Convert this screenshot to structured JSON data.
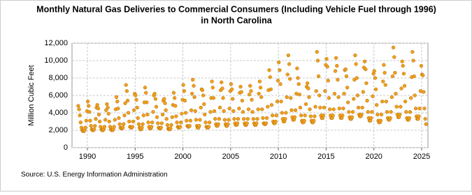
{
  "chart_data": {
    "type": "scatter",
    "title": [
      "Monthly Natural Gas Deliveries to Commercial Consumers (Including Vehicle Fuel through 1996)",
      "in North Carolina"
    ],
    "y_label": "Million Cubic Feet",
    "source": "Source: U.S. Energy Information Administration",
    "color": "#f0a01e",
    "grid": true,
    "xlim": [
      1988.39,
      2025.66
    ],
    "xticks": [
      1990,
      1995,
      2000,
      2005,
      2010,
      2015,
      2020,
      2025
    ],
    "ylim": [
      0,
      12000
    ],
    "yticks": [
      0,
      {
        "value": 2000,
        "label": "2,000"
      },
      {
        "value": 4000,
        "label": "4,000"
      },
      {
        "value": 6000,
        "label": "6,000"
      },
      {
        "value": 8000,
        "label": "8,000"
      },
      {
        "value": 10000,
        "label": "10,000"
      },
      {
        "value": 12000,
        "label": "12,000"
      }
    ],
    "x": [
      1989.04,
      1989.13,
      1989.21,
      1989.29,
      1989.38,
      1989.46,
      1989.54,
      1989.63,
      1989.71,
      1989.79,
      1989.88,
      1989.96,
      1990.04,
      1990.13,
      1990.21,
      1990.29,
      1990.38,
      1990.46,
      1990.54,
      1990.63,
      1990.71,
      1990.79,
      1990.88,
      1990.96,
      1991.04,
      1991.13,
      1991.21,
      1991.29,
      1991.38,
      1991.46,
      1991.54,
      1991.63,
      1991.71,
      1991.79,
      1991.88,
      1991.96,
      1992.04,
      1992.13,
      1992.21,
      1992.29,
      1992.38,
      1992.46,
      1992.54,
      1992.63,
      1992.71,
      1992.79,
      1992.88,
      1992.96,
      1993.04,
      1993.13,
      1993.21,
      1993.29,
      1993.38,
      1993.46,
      1993.54,
      1993.63,
      1993.71,
      1993.79,
      1993.88,
      1993.96,
      1994.04,
      1994.13,
      1994.21,
      1994.29,
      1994.38,
      1994.46,
      1994.54,
      1994.63,
      1994.71,
      1994.79,
      1994.88,
      1994.96,
      1995.04,
      1995.13,
      1995.21,
      1995.29,
      1995.38,
      1995.46,
      1995.54,
      1995.63,
      1995.71,
      1995.79,
      1995.88,
      1995.96,
      1996.04,
      1996.13,
      1996.21,
      1996.29,
      1996.38,
      1996.46,
      1996.54,
      1996.63,
      1996.71,
      1996.79,
      1996.88,
      1996.96,
      1997.04,
      1997.13,
      1997.21,
      1997.29,
      1997.38,
      1997.46,
      1997.54,
      1997.63,
      1997.71,
      1997.79,
      1997.88,
      1997.96,
      1998.04,
      1998.13,
      1998.21,
      1998.29,
      1998.38,
      1998.46,
      1998.54,
      1998.63,
      1998.71,
      1998.79,
      1998.88,
      1998.96,
      1999.04,
      1999.13,
      1999.21,
      1999.29,
      1999.38,
      1999.46,
      1999.54,
      1999.63,
      1999.71,
      1999.79,
      1999.88,
      1999.96,
      2000.04,
      2000.13,
      2000.21,
      2000.29,
      2000.38,
      2000.46,
      2000.54,
      2000.63,
      2000.71,
      2000.79,
      2000.88,
      2000.96,
      2001.04,
      2001.13,
      2001.21,
      2001.29,
      2001.38,
      2001.46,
      2001.54,
      2001.63,
      2001.71,
      2001.79,
      2001.88,
      2001.96,
      2002.04,
      2002.13,
      2002.21,
      2002.29,
      2002.38,
      2002.46,
      2002.54,
      2002.63,
      2002.71,
      2002.79,
      2002.88,
      2002.96,
      2003.04,
      2003.13,
      2003.21,
      2003.29,
      2003.38,
      2003.46,
      2003.54,
      2003.63,
      2003.71,
      2003.79,
      2003.88,
      2003.96,
      2004.04,
      2004.13,
      2004.21,
      2004.29,
      2004.38,
      2004.46,
      2004.54,
      2004.63,
      2004.71,
      2004.79,
      2004.88,
      2004.96,
      2005.04,
      2005.13,
      2005.21,
      2005.29,
      2005.38,
      2005.46,
      2005.54,
      2005.63,
      2005.71,
      2005.79,
      2005.88,
      2005.96,
      2006.04,
      2006.13,
      2006.21,
      2006.29,
      2006.38,
      2006.46,
      2006.54,
      2006.63,
      2006.71,
      2006.79,
      2006.88,
      2006.96,
      2007.04,
      2007.13,
      2007.21,
      2007.29,
      2007.38,
      2007.46,
      2007.54,
      2007.63,
      2007.71,
      2007.79,
      2007.88,
      2007.96,
      2008.04,
      2008.13,
      2008.21,
      2008.29,
      2008.38,
      2008.46,
      2008.54,
      2008.63,
      2008.71,
      2008.79,
      2008.88,
      2008.96,
      2009.04,
      2009.13,
      2009.21,
      2009.29,
      2009.38,
      2009.46,
      2009.54,
      2009.63,
      2009.71,
      2009.79,
      2009.88,
      2009.96,
      2010.04,
      2010.13,
      2010.21,
      2010.29,
      2010.38,
      2010.46,
      2010.54,
      2010.63,
      2010.71,
      2010.79,
      2010.88,
      2010.96,
      2011.04,
      2011.13,
      2011.21,
      2011.29,
      2011.38,
      2011.46,
      2011.54,
      2011.63,
      2011.71,
      2011.79,
      2011.88,
      2011.96,
      2012.04,
      2012.13,
      2012.21,
      2012.29,
      2012.38,
      2012.46,
      2012.54,
      2012.63,
      2012.71,
      2012.79,
      2012.88,
      2012.96,
      2013.04,
      2013.13,
      2013.21,
      2013.29,
      2013.38,
      2013.46,
      2013.54,
      2013.63,
      2013.71,
      2013.79,
      2013.88,
      2013.96,
      2014.04,
      2014.13,
      2014.21,
      2014.29,
      2014.38,
      2014.46,
      2014.54,
      2014.63,
      2014.71,
      2014.79,
      2014.88,
      2014.96,
      2015.04,
      2015.13,
      2015.21,
      2015.29,
      2015.38,
      2015.46,
      2015.54,
      2015.63,
      2015.71,
      2015.79,
      2015.88,
      2015.96,
      2016.04,
      2016.13,
      2016.21,
      2016.29,
      2016.38,
      2016.46,
      2016.54,
      2016.63,
      2016.71,
      2016.79,
      2016.88,
      2016.96,
      2017.04,
      2017.13,
      2017.21,
      2017.29,
      2017.38,
      2017.46,
      2017.54,
      2017.63,
      2017.71,
      2017.79,
      2017.88,
      2017.96,
      2018.04,
      2018.13,
      2018.21,
      2018.29,
      2018.38,
      2018.46,
      2018.54,
      2018.63,
      2018.71,
      2018.79,
      2018.88,
      2018.96,
      2019.04,
      2019.13,
      2019.21,
      2019.29,
      2019.38,
      2019.46,
      2019.54,
      2019.63,
      2019.71,
      2019.79,
      2019.88,
      2019.96,
      2020.04,
      2020.13,
      2020.21,
      2020.29,
      2020.38,
      2020.46,
      2020.54,
      2020.63,
      2020.71,
      2020.79,
      2020.88,
      2020.96,
      2021.04,
      2021.13,
      2021.21,
      2021.29,
      2021.38,
      2021.46,
      2021.54,
      2021.63,
      2021.71,
      2021.79,
      2021.88,
      2021.96,
      2022.04,
      2022.13,
      2022.21,
      2022.29,
      2022.38,
      2022.46,
      2022.54,
      2022.63,
      2022.71,
      2022.79,
      2022.88,
      2022.96,
      2023.04,
      2023.13,
      2023.21,
      2023.29,
      2023.38,
      2023.46,
      2023.54,
      2023.63,
      2023.71,
      2023.79,
      2023.88,
      2023.96,
      2024.04,
      2024.13,
      2024.21,
      2024.29,
      2024.38,
      2024.46,
      2024.54,
      2024.63,
      2024.71,
      2024.79,
      2024.88,
      2024.96,
      2025.04,
      2025.13,
      2025.21,
      2025.29,
      2025.38,
      2025.46
    ],
    "values": [
      4800,
      4400,
      3700,
      2900,
      2300,
      2000,
      1900,
      1900,
      2000,
      2300,
      3100,
      4200,
      5300,
      4800,
      4100,
      3100,
      2500,
      2100,
      2000,
      2000,
      2100,
      2500,
      3300,
      4600,
      4900,
      4500,
      3800,
      3000,
      2400,
      2100,
      2000,
      2000,
      2100,
      2400,
      3200,
      4300,
      5000,
      4600,
      3900,
      3000,
      2400,
      2100,
      2000,
      2000,
      2100,
      2400,
      3200,
      4400,
      5800,
      5300,
      4500,
      3400,
      2700,
      2300,
      2200,
      2200,
      2300,
      2700,
      3700,
      5100,
      7200,
      6500,
      5400,
      4000,
      3000,
      2400,
      2300,
      2300,
      2400,
      3000,
      4300,
      6200,
      6000,
      5500,
      4600,
      3400,
      2700,
      2300,
      2100,
      2100,
      2300,
      2700,
      3700,
      5200,
      6900,
      6300,
      5200,
      3800,
      2900,
      2400,
      2200,
      2200,
      2400,
      2900,
      4100,
      6000,
      6200,
      5600,
      4700,
      3500,
      2800,
      2300,
      2200,
      2200,
      2300,
      2800,
      3800,
      5400,
      5600,
      5100,
      4300,
      3300,
      2600,
      2200,
      2100,
      2100,
      2200,
      2600,
      3500,
      4900,
      6300,
      5700,
      4800,
      3600,
      2900,
      2400,
      2300,
      2300,
      2400,
      2900,
      3900,
      5500,
      7200,
      6500,
      5400,
      4000,
      3100,
      2500,
      2400,
      2400,
      2500,
      3100,
      4300,
      6200,
      7800,
      7100,
      5800,
      4200,
      3200,
      2500,
      2300,
      2300,
      2500,
      3200,
      4600,
      6700,
      6600,
      6000,
      5000,
      3800,
      2900,
      2400,
      2300,
      2300,
      2400,
      2900,
      4100,
      5700,
      7600,
      6900,
      5700,
      4200,
      3300,
      2700,
      2500,
      2500,
      2700,
      3300,
      4600,
      6600,
      7500,
      6800,
      5700,
      4200,
      3200,
      2700,
      2500,
      2500,
      2700,
      3200,
      4500,
      6500,
      7300,
      6700,
      5600,
      4200,
      3300,
      2800,
      2600,
      2600,
      2800,
      3300,
      4500,
      6300,
      7000,
      6400,
      5400,
      4100,
      3300,
      2800,
      2600,
      2600,
      2800,
      3300,
      4400,
      6100,
      7100,
      6500,
      5500,
      4100,
      3300,
      2800,
      2600,
      2600,
      2800,
      3300,
      4400,
      6200,
      7600,
      6900,
      5800,
      4400,
      3400,
      2800,
      2700,
      2700,
      2800,
      3400,
      4700,
      6600,
      8900,
      8100,
      6700,
      4900,
      3700,
      3000,
      2800,
      2800,
      3000,
      3700,
      5300,
      7700,
      9800,
      8900,
      7300,
      5300,
      4000,
      3300,
      3000,
      3000,
      3300,
      4000,
      5800,
      8400,
      10600,
      9600,
      7900,
      5700,
      4300,
      3500,
      3200,
      3200,
      3500,
      4300,
      6200,
      9100,
      8000,
      7300,
      6100,
      4600,
      3700,
      3100,
      2900,
      2900,
      3100,
      3700,
      5000,
      7000,
      7400,
      6800,
      5800,
      4400,
      3600,
      3100,
      2900,
      2900,
      3100,
      3600,
      4700,
      6500,
      11000,
      10000,
      8200,
      6000,
      4600,
      3700,
      3400,
      3400,
      3700,
      4600,
      6500,
      9500,
      10200,
      9300,
      7700,
      5700,
      4400,
      3700,
      3400,
      3400,
      3700,
      4400,
      6200,
      8800,
      10300,
      9400,
      7800,
      5800,
      4500,
      3700,
      3400,
      3400,
      3700,
      4500,
      6200,
      8900,
      9000,
      8200,
      6900,
      5200,
      4100,
      3500,
      3300,
      3300,
      3500,
      4100,
      5600,
      7800,
      10600,
      9600,
      8000,
      6000,
      4600,
      3800,
      3600,
      3600,
      3800,
      4600,
      6400,
      9200,
      9900,
      9000,
      7400,
      5400,
      4100,
      3400,
      3100,
      3100,
      3400,
      4100,
      5900,
      8500,
      8800,
      8000,
      6700,
      4900,
      3800,
      3100,
      2900,
      2900,
      3100,
      3800,
      5300,
      7600,
      9500,
      8600,
      7200,
      5300,
      4100,
      3400,
      3200,
      3200,
      3400,
      4100,
      5800,
      8200,
      11500,
      10400,
      8600,
      6200,
      4700,
      3800,
      3500,
      3500,
      3800,
      4700,
      6800,
      9900,
      9400,
      8500,
      7100,
      5300,
      4100,
      3400,
      3200,
      3200,
      3400,
      4100,
      5700,
      8100,
      11000,
      10000,
      8200,
      6000,
      4500,
      3600,
      3300,
      3300,
      3600,
      4500,
      6500,
      9400,
      8400,
      8300,
      6400,
      4500,
      3300,
      2700
    ]
  }
}
